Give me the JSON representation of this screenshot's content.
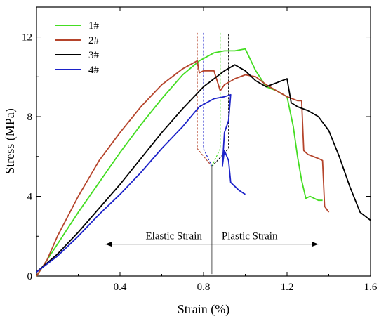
{
  "chart_data": {
    "type": "line",
    "xlabel": "Strain (%)",
    "ylabel": "Stress (MPa)",
    "xlim": [
      0,
      1.6
    ],
    "ylim": [
      0,
      13.5
    ],
    "xticks": [
      0.4,
      0.8,
      1.2,
      1.6
    ],
    "xtick_labels": [
      "0.4",
      "0.8",
      "1.2",
      "1.6"
    ],
    "yticks": [
      0,
      4,
      8,
      12
    ],
    "ytick_labels": [
      "0",
      "4",
      "8",
      "12"
    ],
    "grid": false,
    "legend_position": "top-left",
    "series": [
      {
        "name": "1#",
        "color": "#44dd22",
        "x": [
          0.0,
          0.1,
          0.2,
          0.3,
          0.4,
          0.5,
          0.6,
          0.7,
          0.78,
          0.85,
          0.9,
          0.95,
          1.0,
          1.05,
          1.1,
          1.15,
          1.2,
          1.23,
          1.25,
          1.27,
          1.29,
          1.31,
          1.33,
          1.35,
          1.37
        ],
        "y": [
          0.0,
          1.6,
          3.2,
          4.7,
          6.2,
          7.6,
          8.9,
          10.1,
          10.8,
          11.2,
          11.3,
          11.3,
          11.4,
          10.3,
          9.5,
          9.3,
          9.0,
          7.5,
          6.0,
          4.8,
          3.9,
          4.0,
          3.9,
          3.8,
          3.8
        ]
      },
      {
        "name": "2#",
        "color": "#b5442b",
        "x": [
          0.0,
          0.05,
          0.1,
          0.2,
          0.3,
          0.4,
          0.5,
          0.6,
          0.7,
          0.77,
          0.78,
          0.8,
          0.85,
          0.88,
          0.9,
          0.95,
          1.0,
          1.05,
          1.1,
          1.15,
          1.2,
          1.25,
          1.27,
          1.28,
          1.3,
          1.35,
          1.37,
          1.38,
          1.4
        ],
        "y": [
          0.0,
          0.8,
          2.0,
          4.0,
          5.8,
          7.2,
          8.5,
          9.6,
          10.4,
          10.8,
          10.2,
          10.3,
          10.3,
          9.3,
          9.6,
          9.9,
          10.1,
          10.0,
          9.6,
          9.3,
          9.0,
          8.8,
          8.8,
          6.3,
          6.1,
          5.9,
          5.8,
          3.5,
          3.2
        ]
      },
      {
        "name": "3#",
        "color": "#000000",
        "x": [
          0.0,
          0.1,
          0.2,
          0.3,
          0.4,
          0.5,
          0.6,
          0.7,
          0.8,
          0.9,
          0.95,
          1.0,
          1.05,
          1.1,
          1.15,
          1.2,
          1.22,
          1.25,
          1.3,
          1.35,
          1.4,
          1.45,
          1.5,
          1.55,
          1.6
        ],
        "y": [
          0.2,
          1.1,
          2.2,
          3.4,
          4.6,
          5.9,
          7.2,
          8.4,
          9.5,
          10.3,
          10.6,
          10.3,
          9.8,
          9.5,
          9.7,
          9.9,
          8.7,
          8.5,
          8.3,
          8.0,
          7.3,
          6.0,
          4.5,
          3.2,
          2.8
        ]
      },
      {
        "name": "4#",
        "color": "#1c22c9",
        "x": [
          0.0,
          0.1,
          0.2,
          0.3,
          0.4,
          0.5,
          0.6,
          0.7,
          0.78,
          0.85,
          0.9,
          0.93,
          0.92,
          0.9,
          0.89,
          0.9,
          0.92,
          0.93,
          0.95,
          0.97,
          1.0
        ],
        "y": [
          0.2,
          1.0,
          2.0,
          3.1,
          4.1,
          5.2,
          6.4,
          7.5,
          8.5,
          8.9,
          9.0,
          9.1,
          7.8,
          7.2,
          5.5,
          6.3,
          5.8,
          4.7,
          4.5,
          4.3,
          4.1
        ]
      }
    ],
    "annotations": {
      "elastic_label": "Elastic Strain",
      "plastic_label": "Plastic Strain",
      "split_x": 0.84,
      "arrow_y": 1.6,
      "arrow_x_left": 0.33,
      "arrow_x_right": 1.35,
      "converge_point": [
        0.84,
        5.5
      ],
      "peak_guides": [
        {
          "color": "#b5442b",
          "x": 0.77,
          "y_top": 12.2
        },
        {
          "color": "#1c22c9",
          "x": 0.8,
          "y_top": 12.2
        },
        {
          "color": "#44dd22",
          "x": 0.88,
          "y_top": 12.2
        },
        {
          "color": "#000000",
          "x": 0.92,
          "y_top": 12.2
        }
      ]
    }
  }
}
